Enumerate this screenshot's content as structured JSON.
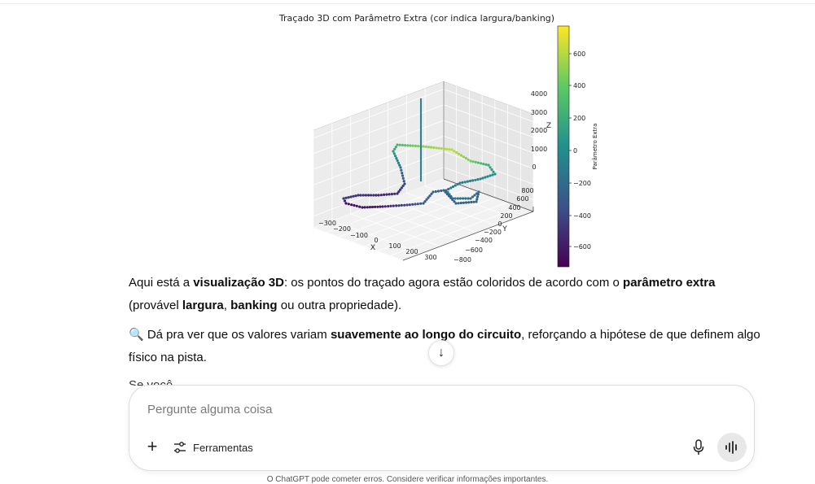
{
  "chart": {
    "title": "Traçado 3D com Parâmetro Extra (cor indica largura/banking)",
    "x_label": "X",
    "y_label": "Y",
    "z_label": "Z",
    "colorbar_label": "Parâmetro Extra",
    "x_ticks": [
      "−300",
      "−200",
      "−100",
      "0",
      "100",
      "200",
      "300"
    ],
    "y_ticks": [
      "800",
      "600",
      "400",
      "200",
      "0",
      "−200",
      "−400",
      "−600",
      "−800"
    ],
    "z_ticks": [
      "4000",
      "3000",
      "2000",
      "1000",
      "0"
    ],
    "colorbar_ticks": [
      "600",
      "400",
      "200",
      "0",
      "−200",
      "−400",
      "−600"
    ]
  },
  "chart_data": {
    "type": "scatter",
    "title": "Traçado 3D com Parâmetro Extra (cor indica largura/banking)",
    "xlabel": "X",
    "ylabel": "Y",
    "zlabel": "Z",
    "xlim": [
      -350,
      350
    ],
    "ylim": [
      -800,
      800
    ],
    "zlim": [
      -500,
      4500
    ],
    "colorbar": {
      "label": "Parâmetro Extra",
      "range": [
        -750,
        750
      ],
      "colormap": "viridis"
    },
    "grid": true
  },
  "message": {
    "p1_a": "Aqui está a ",
    "p1_b": "visualização 3D",
    "p1_c": ": os pontos do traçado agora estão coloridos de acordo com o ",
    "p1_d": "parâmetro extra",
    "p1_e": " (provável ",
    "p1_f": "largura",
    "p1_g": ", ",
    "p1_h": "banking",
    "p1_i": " ou outra propriedade).",
    "p2_a": "🔍 Dá pra ver que os valores variam ",
    "p2_b": "suavemente ao longo do circuito",
    "p2_c": ", reforçando a hipótese de que definem algo físico na pista.",
    "p3": "Se você"
  },
  "scroll_button": "↓",
  "composer": {
    "placeholder": "Pergunte alguma coisa",
    "plus": "+",
    "tools_label": "Ferramentas"
  },
  "footer": "O ChatGPT pode cometer erros. Considere verificar informações importantes."
}
